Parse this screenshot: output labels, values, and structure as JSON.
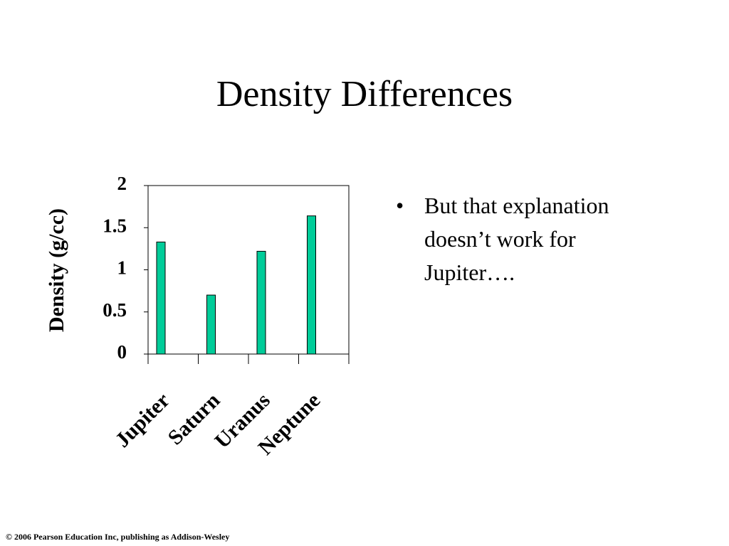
{
  "chart_data": {
    "type": "bar",
    "title": "Density Differences",
    "y_label": "Density (g/cc)",
    "categories": [
      "Jupiter",
      "Saturn",
      "Uranus",
      "Neptune"
    ],
    "values": [
      1.33,
      0.7,
      1.22,
      1.64
    ],
    "color": "#00cc99",
    "ylim": [
      0,
      2
    ],
    "yticks": [
      0,
      0.5,
      1,
      1.5,
      2
    ],
    "grid": false
  },
  "bullet": "But that explanation doesn’t work for Jupiter….",
  "footer": "© 2006 Pearson Education Inc, publishing as Addison-Wesley"
}
